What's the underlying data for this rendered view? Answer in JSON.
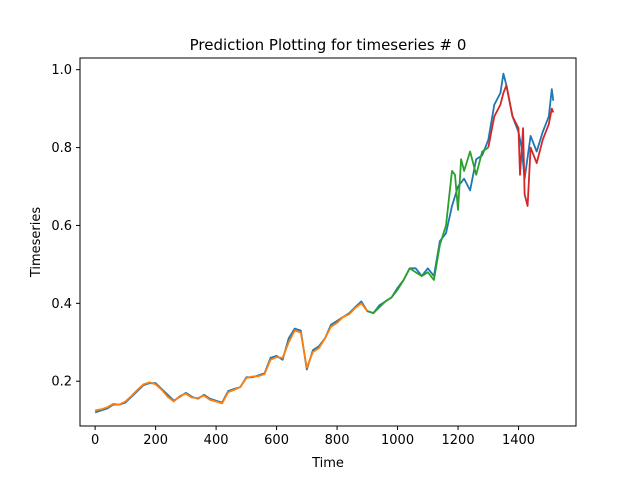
{
  "chart_data": {
    "type": "line",
    "title": "Prediction Plotting for timeseries # 0",
    "xlabel": "Time",
    "ylabel": "Timeseries",
    "xlim": [
      -50,
      1590
    ],
    "ylim": [
      0.085,
      1.03
    ],
    "x_ticks": [
      0,
      200,
      400,
      600,
      800,
      1000,
      1200,
      1400
    ],
    "y_ticks": [
      0.2,
      0.4,
      0.6,
      0.8,
      1.0
    ],
    "x_tick_labels": [
      "0",
      "200",
      "400",
      "600",
      "800",
      "1000",
      "1200",
      "1400"
    ],
    "y_tick_labels": [
      "0.2",
      "0.4",
      "0.6",
      "0.8",
      "1.0"
    ],
    "grid": false,
    "legend": "none",
    "series": [
      {
        "color": "#1f77b4",
        "role": "actual",
        "points": [
          [
            0,
            0.12
          ],
          [
            20,
            0.125
          ],
          [
            40,
            0.13
          ],
          [
            60,
            0.14
          ],
          [
            80,
            0.14
          ],
          [
            100,
            0.145
          ],
          [
            120,
            0.16
          ],
          [
            140,
            0.175
          ],
          [
            160,
            0.19
          ],
          [
            180,
            0.195
          ],
          [
            200,
            0.195
          ],
          [
            220,
            0.18
          ],
          [
            240,
            0.165
          ],
          [
            260,
            0.15
          ],
          [
            280,
            0.16
          ],
          [
            300,
            0.17
          ],
          [
            320,
            0.16
          ],
          [
            340,
            0.155
          ],
          [
            360,
            0.165
          ],
          [
            380,
            0.155
          ],
          [
            400,
            0.15
          ],
          [
            420,
            0.145
          ],
          [
            440,
            0.175
          ],
          [
            460,
            0.18
          ],
          [
            480,
            0.185
          ],
          [
            500,
            0.21
          ],
          [
            520,
            0.21
          ],
          [
            540,
            0.215
          ],
          [
            560,
            0.22
          ],
          [
            580,
            0.26
          ],
          [
            600,
            0.265
          ],
          [
            620,
            0.255
          ],
          [
            640,
            0.31
          ],
          [
            660,
            0.335
          ],
          [
            680,
            0.33
          ],
          [
            700,
            0.23
          ],
          [
            720,
            0.28
          ],
          [
            740,
            0.29
          ],
          [
            760,
            0.31
          ],
          [
            780,
            0.345
          ],
          [
            800,
            0.355
          ],
          [
            820,
            0.365
          ],
          [
            840,
            0.375
          ],
          [
            860,
            0.39
          ],
          [
            880,
            0.405
          ],
          [
            900,
            0.38
          ],
          [
            920,
            0.375
          ],
          [
            940,
            0.395
          ],
          [
            960,
            0.405
          ],
          [
            980,
            0.415
          ],
          [
            1000,
            0.44
          ],
          [
            1020,
            0.46
          ],
          [
            1040,
            0.49
          ],
          [
            1060,
            0.49
          ],
          [
            1080,
            0.47
          ],
          [
            1100,
            0.49
          ],
          [
            1120,
            0.47
          ],
          [
            1140,
            0.56
          ],
          [
            1160,
            0.58
          ],
          [
            1180,
            0.65
          ],
          [
            1200,
            0.7
          ],
          [
            1220,
            0.72
          ],
          [
            1240,
            0.69
          ],
          [
            1260,
            0.77
          ],
          [
            1280,
            0.78
          ],
          [
            1300,
            0.82
          ],
          [
            1320,
            0.91
          ],
          [
            1340,
            0.94
          ],
          [
            1350,
            0.99
          ],
          [
            1360,
            0.96
          ],
          [
            1380,
            0.88
          ],
          [
            1400,
            0.84
          ],
          [
            1410,
            0.8
          ],
          [
            1420,
            0.72
          ],
          [
            1440,
            0.83
          ],
          [
            1460,
            0.79
          ],
          [
            1480,
            0.84
          ],
          [
            1500,
            0.88
          ],
          [
            1510,
            0.95
          ],
          [
            1515,
            0.92
          ]
        ]
      },
      {
        "color": "#ff7f0e",
        "role": "train-fit",
        "points": [
          [
            0,
            0.125
          ],
          [
            20,
            0.128
          ],
          [
            40,
            0.133
          ],
          [
            60,
            0.142
          ],
          [
            80,
            0.14
          ],
          [
            100,
            0.148
          ],
          [
            120,
            0.162
          ],
          [
            140,
            0.178
          ],
          [
            160,
            0.192
          ],
          [
            180,
            0.197
          ],
          [
            200,
            0.192
          ],
          [
            220,
            0.178
          ],
          [
            240,
            0.16
          ],
          [
            260,
            0.148
          ],
          [
            280,
            0.162
          ],
          [
            300,
            0.168
          ],
          [
            320,
            0.158
          ],
          [
            340,
            0.157
          ],
          [
            360,
            0.163
          ],
          [
            380,
            0.152
          ],
          [
            400,
            0.148
          ],
          [
            420,
            0.143
          ],
          [
            440,
            0.172
          ],
          [
            460,
            0.178
          ],
          [
            480,
            0.185
          ],
          [
            500,
            0.208
          ],
          [
            520,
            0.212
          ],
          [
            540,
            0.213
          ],
          [
            560,
            0.218
          ],
          [
            580,
            0.255
          ],
          [
            600,
            0.262
          ],
          [
            620,
            0.26
          ],
          [
            640,
            0.3
          ],
          [
            660,
            0.33
          ],
          [
            680,
            0.325
          ],
          [
            700,
            0.235
          ],
          [
            720,
            0.275
          ],
          [
            740,
            0.285
          ],
          [
            760,
            0.31
          ],
          [
            780,
            0.34
          ],
          [
            800,
            0.35
          ],
          [
            820,
            0.365
          ],
          [
            840,
            0.372
          ],
          [
            860,
            0.388
          ],
          [
            880,
            0.4
          ],
          [
            900,
            0.38
          ]
        ]
      },
      {
        "color": "#2ca02c",
        "role": "validation-fit",
        "points": [
          [
            900,
            0.38
          ],
          [
            920,
            0.375
          ],
          [
            940,
            0.39
          ],
          [
            960,
            0.405
          ],
          [
            980,
            0.415
          ],
          [
            1000,
            0.435
          ],
          [
            1020,
            0.46
          ],
          [
            1040,
            0.49
          ],
          [
            1060,
            0.48
          ],
          [
            1080,
            0.47
          ],
          [
            1100,
            0.48
          ],
          [
            1120,
            0.46
          ],
          [
            1140,
            0.55
          ],
          [
            1160,
            0.6
          ],
          [
            1180,
            0.74
          ],
          [
            1190,
            0.73
          ],
          [
            1200,
            0.64
          ],
          [
            1210,
            0.77
          ],
          [
            1220,
            0.74
          ],
          [
            1240,
            0.79
          ],
          [
            1260,
            0.73
          ],
          [
            1280,
            0.79
          ],
          [
            1300,
            0.8
          ]
        ]
      },
      {
        "color": "#d62728",
        "role": "test-fit",
        "points": [
          [
            1300,
            0.8
          ],
          [
            1320,
            0.88
          ],
          [
            1340,
            0.91
          ],
          [
            1350,
            0.94
          ],
          [
            1360,
            0.96
          ],
          [
            1380,
            0.88
          ],
          [
            1400,
            0.85
          ],
          [
            1405,
            0.73
          ],
          [
            1415,
            0.85
          ],
          [
            1420,
            0.68
          ],
          [
            1430,
            0.65
          ],
          [
            1440,
            0.8
          ],
          [
            1460,
            0.76
          ],
          [
            1480,
            0.82
          ],
          [
            1500,
            0.86
          ],
          [
            1510,
            0.9
          ],
          [
            1515,
            0.89
          ]
        ]
      }
    ]
  }
}
